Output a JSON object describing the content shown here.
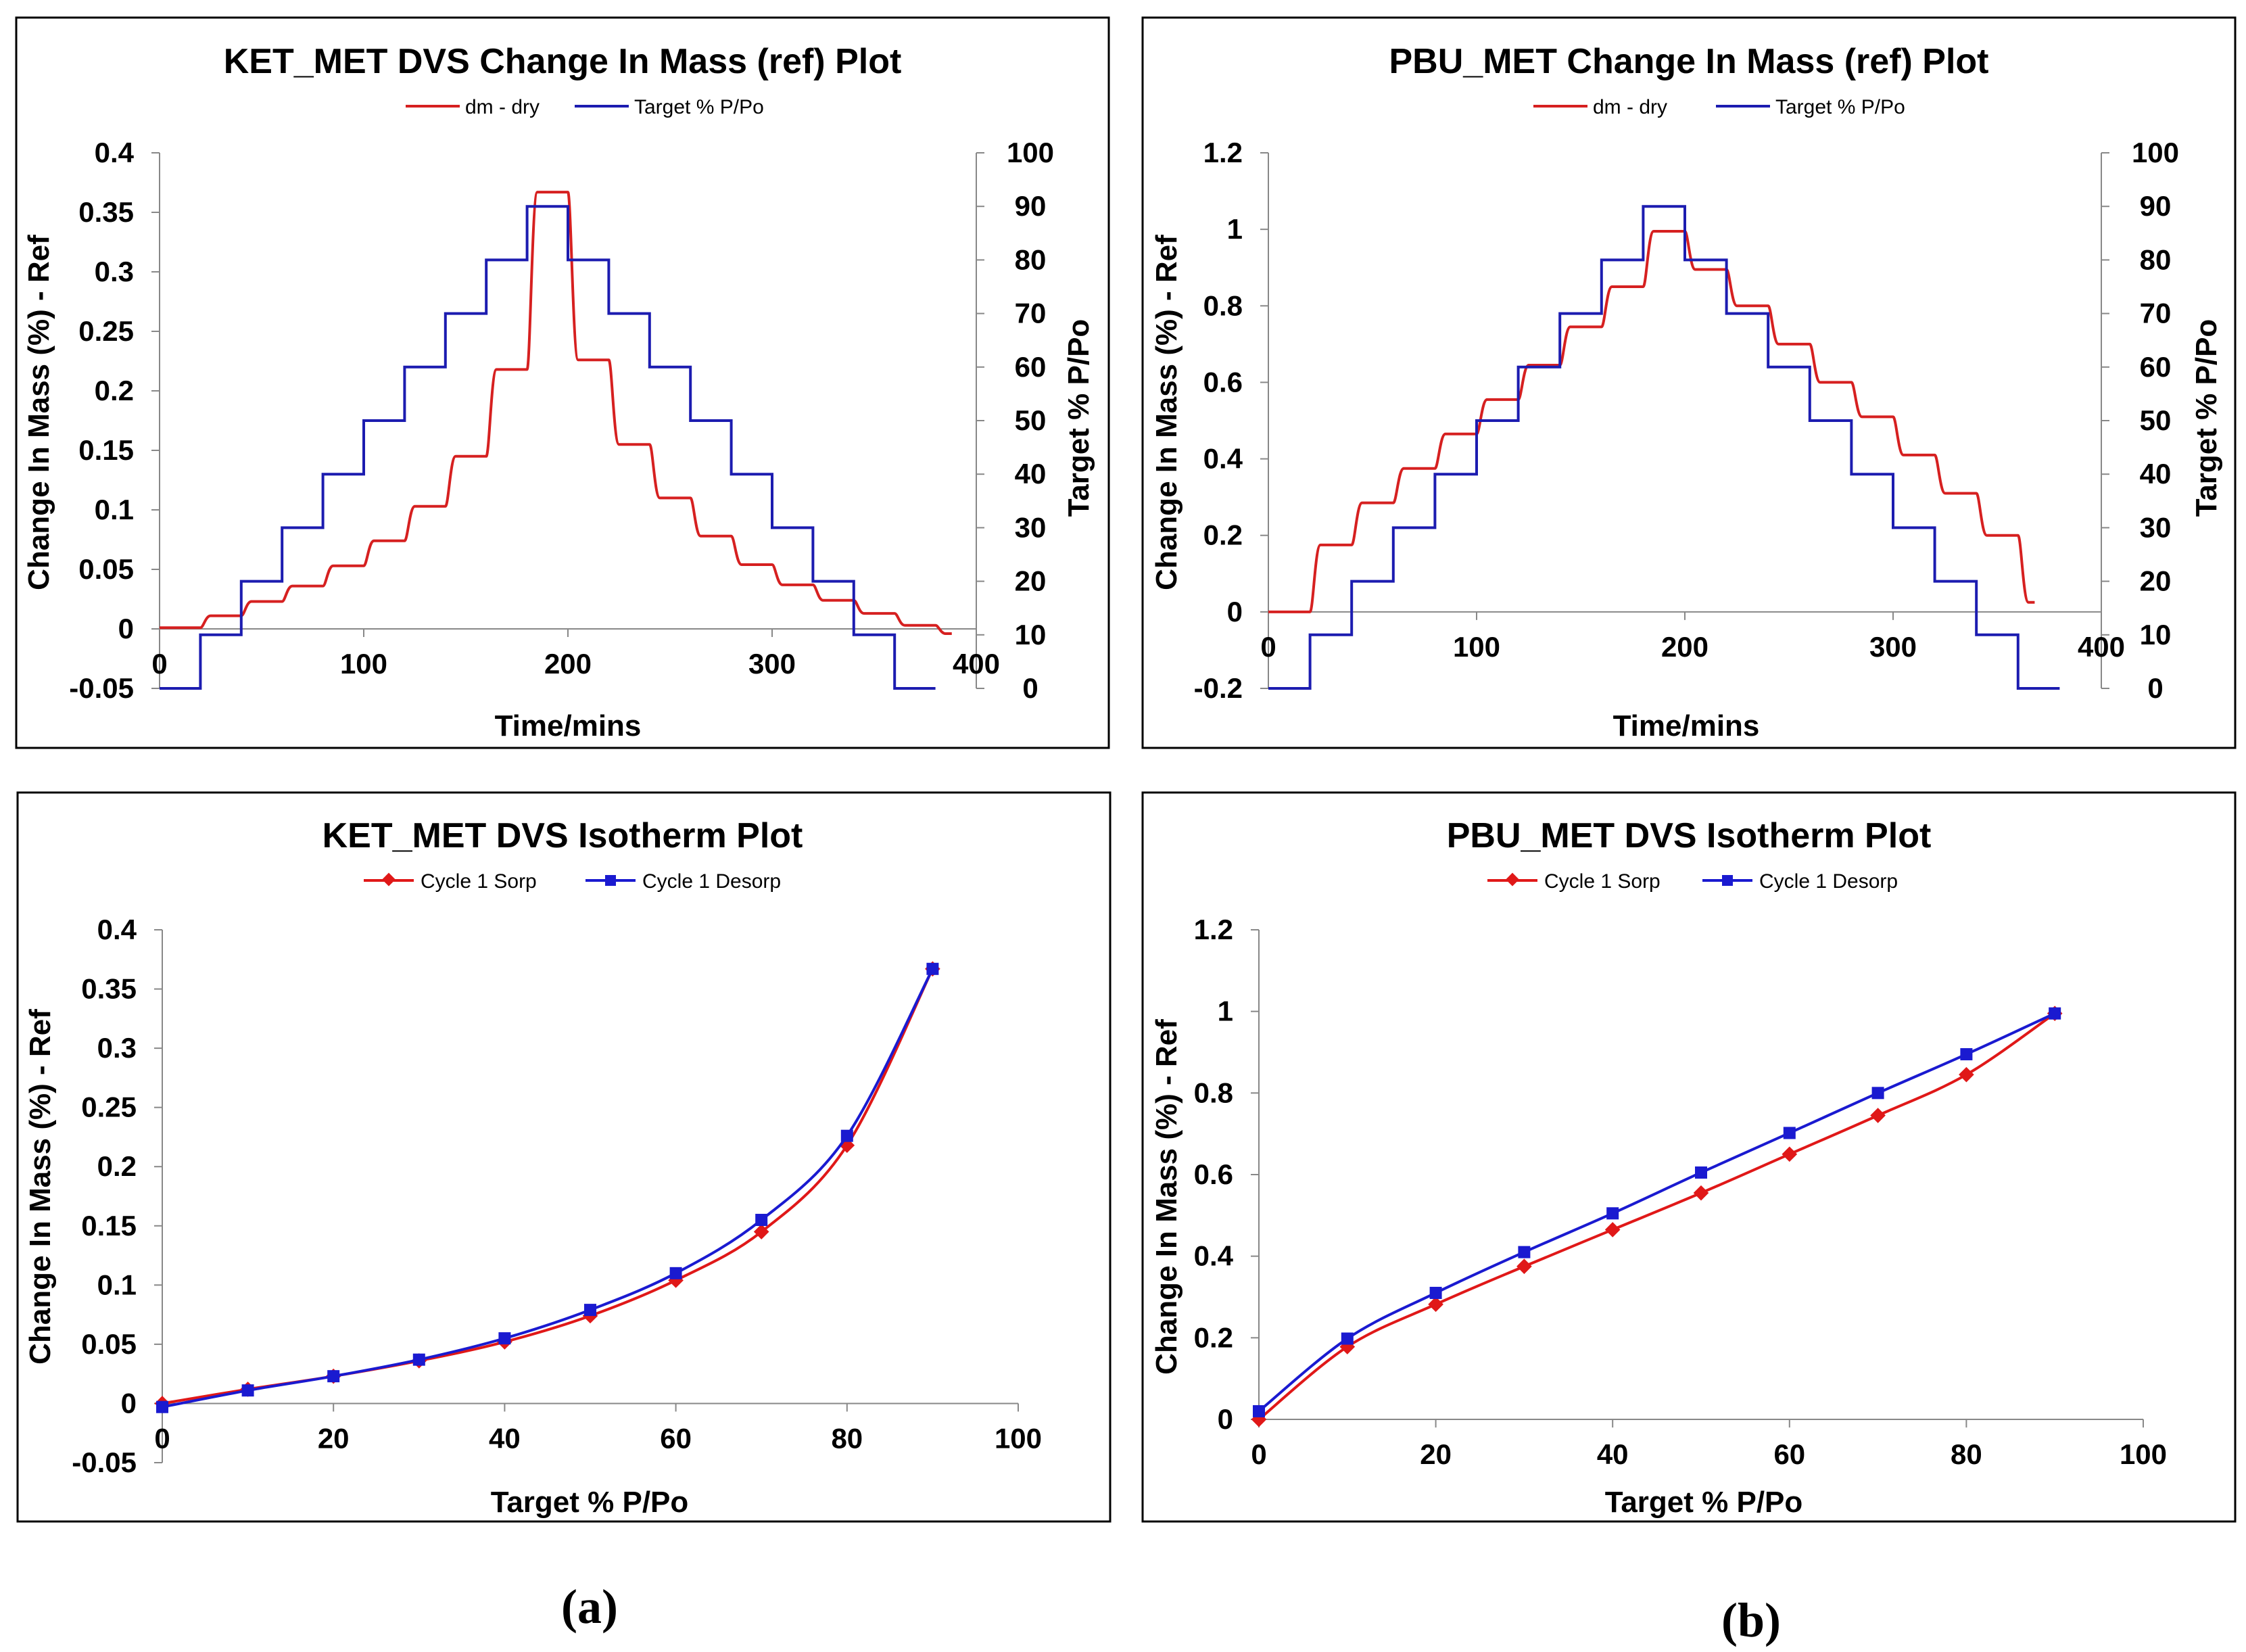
{
  "panel_labels": [
    "(a)",
    "(b)"
  ],
  "chart_data": [
    {
      "id": "ket-mass",
      "type": "line",
      "title": "KET_MET DVS Change In Mass (ref) Plot",
      "xlabel": "Time/mins",
      "ylabel": "Change In Mass (%)  - Ref",
      "y2label": "Target % P/Po",
      "xlim": [
        0,
        400
      ],
      "ylim": [
        -0.05,
        0.4
      ],
      "y2lim": [
        0,
        100
      ],
      "xticks": [
        0,
        100,
        200,
        300,
        400
      ],
      "yticks": [
        -0.05,
        0,
        0.05,
        0.1,
        0.15,
        0.2,
        0.25,
        0.3,
        0.35,
        0.4
      ],
      "y2ticks": [
        0,
        10,
        20,
        30,
        40,
        50,
        60,
        70,
        80,
        90,
        100
      ],
      "legend": "top",
      "grid": false,
      "series": [
        {
          "name": "dm - dry",
          "color": "#d62020",
          "axis": "left",
          "shape": "step-curve",
          "levels": [
            [
              0,
              0.001
            ],
            [
              20,
              0.011
            ],
            [
              40,
              0.023
            ],
            [
              60,
              0.036
            ],
            [
              80,
              0.053
            ],
            [
              100,
              0.074
            ],
            [
              120,
              0.103
            ],
            [
              140,
              0.145
            ],
            [
              160,
              0.218
            ],
            [
              180,
              0.367
            ],
            [
              200,
              0.226
            ],
            [
              220,
              0.155
            ],
            [
              240,
              0.11
            ],
            [
              260,
              0.078
            ],
            [
              280,
              0.054
            ],
            [
              300,
              0.037
            ],
            [
              320,
              0.024
            ],
            [
              340,
              0.013
            ],
            [
              360,
              0.003
            ],
            [
              380,
              -0.004
            ]
          ]
        },
        {
          "name": "Target % P/Po",
          "color": "#1c1cb0",
          "axis": "right",
          "shape": "step",
          "steps": [
            [
              0,
              0
            ],
            [
              20,
              10
            ],
            [
              40,
              20
            ],
            [
              60,
              30
            ],
            [
              80,
              40
            ],
            [
              100,
              50
            ],
            [
              120,
              60
            ],
            [
              140,
              70
            ],
            [
              160,
              80
            ],
            [
              180,
              90
            ],
            [
              200,
              80
            ],
            [
              220,
              70
            ],
            [
              240,
              60
            ],
            [
              260,
              50
            ],
            [
              280,
              40
            ],
            [
              300,
              30
            ],
            [
              320,
              20
            ],
            [
              340,
              10
            ],
            [
              360,
              0
            ],
            [
              380,
              0
            ]
          ]
        }
      ]
    },
    {
      "id": "pbu-mass",
      "type": "line",
      "title": "PBU_MET Change In Mass (ref) Plot",
      "xlabel": "Time/mins",
      "ylabel": "Change In Mass (%)  - Ref",
      "y2label": "Target % P/Po",
      "xlim": [
        0,
        400
      ],
      "ylim": [
        -0.2,
        1.2
      ],
      "y2lim": [
        0,
        100
      ],
      "xticks": [
        0,
        100,
        200,
        300,
        400
      ],
      "yticks": [
        -0.2,
        0,
        0.2,
        0.4,
        0.6,
        0.8,
        1,
        1.2
      ],
      "y2ticks": [
        0,
        10,
        20,
        30,
        40,
        50,
        60,
        70,
        80,
        90,
        100
      ],
      "legend": "top",
      "grid": false,
      "series": [
        {
          "name": "dm - dry",
          "color": "#d62020",
          "axis": "left",
          "shape": "step-curve",
          "levels": [
            [
              0,
              0
            ],
            [
              20,
              0.175
            ],
            [
              40,
              0.285
            ],
            [
              60,
              0.375
            ],
            [
              80,
              0.465
            ],
            [
              100,
              0.555
            ],
            [
              120,
              0.645
            ],
            [
              140,
              0.745
            ],
            [
              160,
              0.85
            ],
            [
              180,
              0.995
            ],
            [
              200,
              0.895
            ],
            [
              220,
              0.8
            ],
            [
              240,
              0.7
            ],
            [
              260,
              0.6
            ],
            [
              280,
              0.51
            ],
            [
              300,
              0.41
            ],
            [
              320,
              0.31
            ],
            [
              340,
              0.2
            ],
            [
              360,
              0.025
            ]
          ]
        },
        {
          "name": "Target % P/Po",
          "color": "#1c1cb0",
          "axis": "right",
          "shape": "step",
          "steps": [
            [
              0,
              0
            ],
            [
              20,
              10
            ],
            [
              40,
              20
            ],
            [
              60,
              30
            ],
            [
              80,
              40
            ],
            [
              100,
              50
            ],
            [
              120,
              60
            ],
            [
              140,
              70
            ],
            [
              160,
              80
            ],
            [
              180,
              90
            ],
            [
              200,
              80
            ],
            [
              220,
              70
            ],
            [
              240,
              60
            ],
            [
              260,
              50
            ],
            [
              280,
              40
            ],
            [
              300,
              30
            ],
            [
              320,
              20
            ],
            [
              340,
              10
            ],
            [
              360,
              0
            ],
            [
              380,
              0
            ]
          ]
        }
      ]
    },
    {
      "id": "ket-iso",
      "type": "line",
      "title": "KET_MET DVS Isotherm Plot",
      "xlabel": "Target %  P/Po",
      "ylabel": "Change In Mass (%)  - Ref",
      "xlim": [
        0,
        100
      ],
      "ylim": [
        -0.05,
        0.4
      ],
      "xticks": [
        0,
        20,
        40,
        60,
        80,
        100
      ],
      "yticks": [
        -0.05,
        0,
        0.05,
        0.1,
        0.15,
        0.2,
        0.25,
        0.3,
        0.35,
        0.4
      ],
      "legend": "top",
      "grid": false,
      "series": [
        {
          "name": "Cycle 1 Sorp",
          "color": "#e01818",
          "marker": "diamond",
          "x": [
            0,
            10,
            20,
            30,
            40,
            50,
            60,
            70,
            80,
            90
          ],
          "y": [
            0.0,
            0.012,
            0.023,
            0.036,
            0.052,
            0.074,
            0.104,
            0.145,
            0.218,
            0.367
          ]
        },
        {
          "name": "Cycle 1 Desorp",
          "color": "#1a1ad0",
          "marker": "square",
          "x": [
            0,
            10,
            20,
            30,
            40,
            50,
            60,
            70,
            80,
            90
          ],
          "y": [
            -0.003,
            0.011,
            0.023,
            0.037,
            0.055,
            0.079,
            0.11,
            0.155,
            0.226,
            0.367
          ]
        }
      ]
    },
    {
      "id": "pbu-iso",
      "type": "line",
      "title": "PBU_MET DVS Isotherm Plot",
      "xlabel": "Target %  P/Po",
      "ylabel": "Change In Mass (%)  - Ref",
      "xlim": [
        0,
        100
      ],
      "ylim": [
        0,
        1.2
      ],
      "xticks": [
        0,
        20,
        40,
        60,
        80,
        100
      ],
      "yticks": [
        0,
        0.2,
        0.4,
        0.6,
        0.8,
        1,
        1.2
      ],
      "legend": "top",
      "grid": false,
      "series": [
        {
          "name": "Cycle 1 Sorp",
          "color": "#e01818",
          "marker": "diamond",
          "x": [
            0,
            10,
            20,
            30,
            40,
            50,
            60,
            70,
            80,
            90
          ],
          "y": [
            0.0,
            0.178,
            0.282,
            0.375,
            0.465,
            0.555,
            0.65,
            0.745,
            0.845,
            0.995
          ]
        },
        {
          "name": "Cycle 1 Desorp",
          "color": "#1a1ad0",
          "marker": "square",
          "x": [
            0,
            10,
            20,
            30,
            40,
            50,
            60,
            70,
            80,
            90
          ],
          "y": [
            0.02,
            0.198,
            0.31,
            0.41,
            0.505,
            0.605,
            0.702,
            0.8,
            0.895,
            0.995
          ]
        }
      ]
    }
  ]
}
